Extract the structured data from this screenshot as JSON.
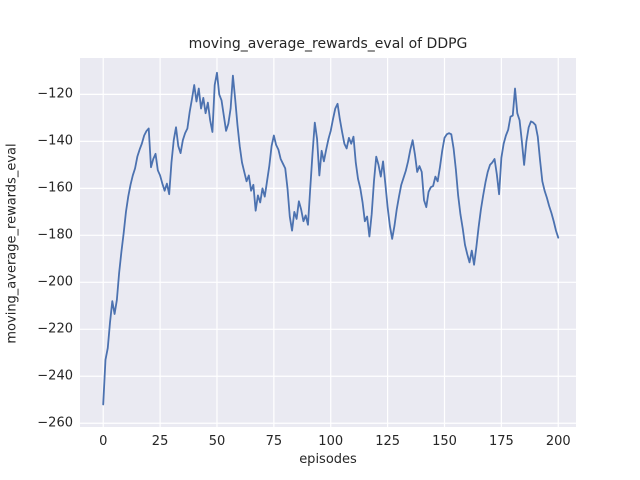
{
  "style": {
    "figure_bg": "#ffffff",
    "axes_bg": "#eaeaf2",
    "grid_color": "#ffffff",
    "text_color": "#262626",
    "line_color": "#4c72b0",
    "line_width": 1.8
  },
  "chart_data": {
    "type": "line",
    "title": "moving_average_rewards_eval of DDPG",
    "xlabel": "episodes",
    "ylabel": "moving_average_rewards_eval",
    "legend": null,
    "grid": true,
    "xlim": [
      -10.2,
      207.8
    ],
    "ylim": [
      -261.6,
      -104.5
    ],
    "x_ticks": [
      0,
      25,
      50,
      75,
      100,
      125,
      150,
      175,
      200
    ],
    "x_tick_labels": [
      "0",
      "25",
      "50",
      "75",
      "100",
      "125",
      "150",
      "175",
      "200"
    ],
    "y_ticks": [
      -120,
      -140,
      -160,
      -180,
      -200,
      -220,
      -240,
      -260
    ],
    "y_tick_labels": [
      "−120",
      "−140",
      "−160",
      "−180",
      "−200",
      "−220",
      "−240",
      "−260"
    ],
    "series": [
      {
        "name": "moving_average_rewards_eval",
        "x_start": 0,
        "x_step": 1,
        "values": [
          -252,
          -233,
          -228,
          -217,
          -208,
          -213.5,
          -207.5,
          -196,
          -187,
          -179,
          -170,
          -163.5,
          -158.5,
          -154.5,
          -151.5,
          -146.5,
          -143.5,
          -140.9,
          -137.5,
          -135.6,
          -134.5,
          -151,
          -147.5,
          -145.3,
          -152.3,
          -154.5,
          -158,
          -161,
          -158,
          -162.5,
          -149,
          -139.5,
          -134,
          -142,
          -145,
          -139.5,
          -136.5,
          -134.5,
          -127.5,
          -122,
          -116,
          -123,
          -117.5,
          -126,
          -121.5,
          -128,
          -123.5,
          -131,
          -136,
          -116,
          -110.8,
          -120,
          -122.5,
          -129,
          -135.5,
          -132.5,
          -126,
          -112,
          -122,
          -133,
          -142,
          -149,
          -153,
          -157,
          -154.5,
          -161,
          -158.5,
          -169.5,
          -163,
          -166,
          -160,
          -163.5,
          -157,
          -150.5,
          -142,
          -137.5,
          -141.5,
          -143.5,
          -147.5,
          -149.5,
          -151.5,
          -160,
          -172,
          -178,
          -170,
          -173,
          -165.5,
          -169,
          -174,
          -171.5,
          -175.5,
          -160,
          -145,
          -132,
          -139,
          -154.5,
          -144,
          -148.5,
          -143.5,
          -139,
          -135.5,
          -130.5,
          -126,
          -124,
          -130.5,
          -136,
          -141,
          -143,
          -138.5,
          -141,
          -138,
          -149,
          -156,
          -160,
          -166,
          -174,
          -172,
          -180.5,
          -171,
          -157,
          -146.5,
          -150,
          -155,
          -148.5,
          -158,
          -168,
          -176,
          -181.5,
          -176,
          -169,
          -163.5,
          -158.5,
          -155.5,
          -152.5,
          -148.5,
          -143.5,
          -139.5,
          -145.5,
          -153,
          -150.5,
          -153,
          -165,
          -168,
          -161.5,
          -159.5,
          -159,
          -155,
          -157,
          -151,
          -144,
          -138.5,
          -137,
          -136.5,
          -137,
          -143,
          -152,
          -163,
          -171,
          -177,
          -184,
          -188,
          -191.5,
          -186.5,
          -192.5,
          -185,
          -176.5,
          -169,
          -163,
          -157.5,
          -153,
          -150,
          -149,
          -147.5,
          -154,
          -162.5,
          -147,
          -141,
          -137.5,
          -135,
          -129.5,
          -129,
          -117.5,
          -128,
          -131,
          -140,
          -150,
          -140,
          -134,
          -131.5,
          -132,
          -133,
          -138,
          -148,
          -157,
          -161,
          -164,
          -167.5,
          -170.5,
          -174,
          -178,
          -181
        ]
      }
    ]
  }
}
